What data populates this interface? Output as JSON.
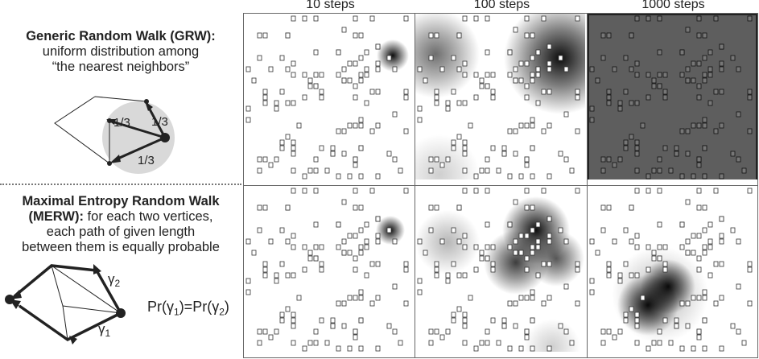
{
  "grw": {
    "title": "Generic Random Walk (GRW):",
    "line2": "uniform distribution among",
    "line3": "“the nearest neighbors”",
    "prob_label": "1/3"
  },
  "merw": {
    "title1": "Maximal Entropy Random Walk",
    "title2": "(MERW):",
    "rest2": " for each two vertices,",
    "line3": "each path of given length",
    "line4": "between them is equally probable",
    "gamma1": "γ",
    "gamma2": "γ",
    "sub1": "1",
    "sub2": "2",
    "equation": {
      "pr": "Pr(",
      "gamma": "γ",
      "sub1": "1",
      "mid": ")=Pr(",
      "sub2": "2",
      "close": ")"
    }
  },
  "steps": [
    "10 steps",
    "100 steps",
    "1000 steps"
  ]
}
